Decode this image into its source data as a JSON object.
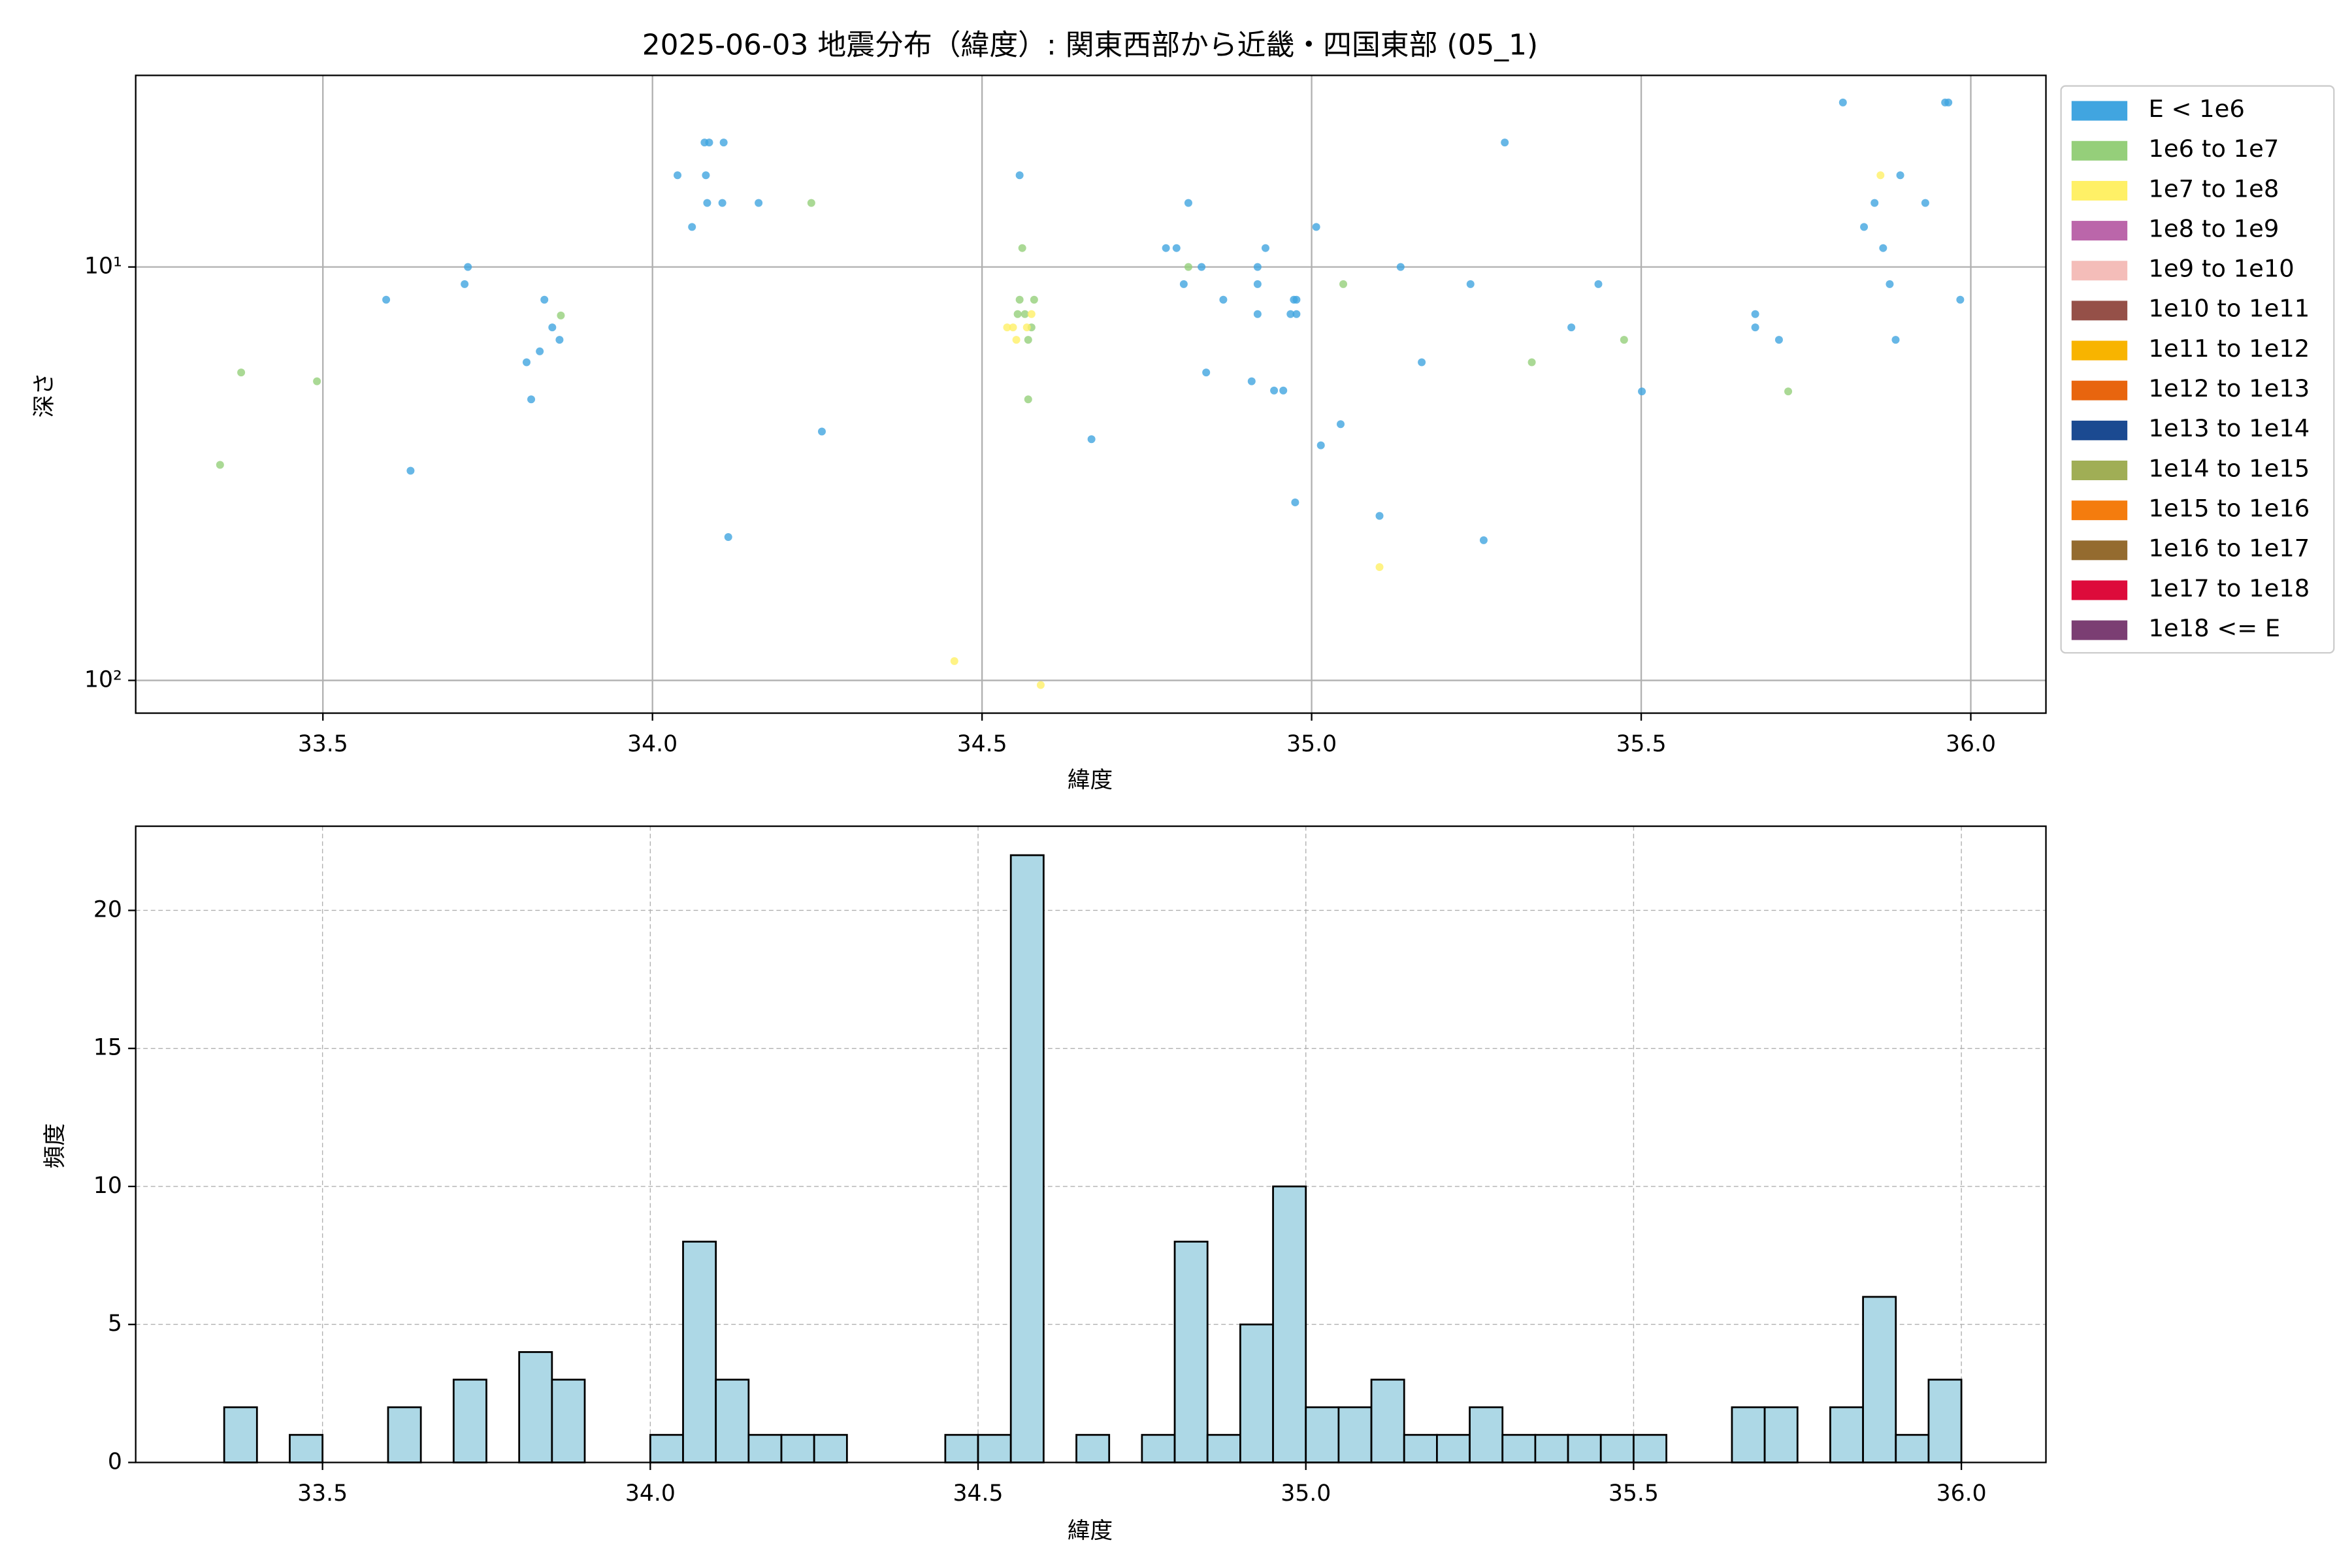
{
  "chart_data": [
    {
      "type": "scatter",
      "title": "2025-06-03 地震分布（緯度）: 関東西部から近畿・四国東部 (05_1)",
      "xlabel": "緯度",
      "ylabel": "深さ",
      "yscale": "log",
      "grid": true,
      "legend": "outside right",
      "xlim": [
        33.216,
        36.114
      ],
      "ylim": [
        120,
        3.44
      ],
      "xticks": [
        33.5,
        {
          "value": 34,
          "label": "34.0"
        },
        34.5,
        {
          "value": 35,
          "label": "35.0"
        },
        35.5,
        {
          "value": 36,
          "label": "36.0"
        }
      ],
      "yticks": [
        {
          "value": 10,
          "label": "10¹"
        },
        {
          "value": 100,
          "label": "10²"
        }
      ],
      "series": [
        {
          "name": "E < 1e6",
          "color": "#41a5e0",
          "x": [
            33.596,
            33.633,
            33.715,
            33.72,
            33.809,
            33.816,
            33.829,
            33.836,
            33.848,
            33.859,
            34.038,
            34.06,
            34.079,
            34.086,
            34.081,
            34.083,
            34.108,
            34.106,
            34.115,
            34.161,
            34.257,
            34.557,
            34.666,
            34.779,
            34.795,
            34.806,
            34.813,
            34.833,
            34.84,
            34.866,
            34.909,
            34.918,
            34.918,
            34.918,
            34.93,
            34.943,
            34.957,
            34.968,
            34.973,
            34.977,
            34.977,
            34.975,
            35.007,
            35.014,
            35.044,
            35.103,
            35.135,
            35.167,
            35.241,
            35.261,
            35.293,
            35.394,
            35.435,
            35.501,
            35.673,
            35.673,
            35.709,
            35.806,
            35.838,
            35.854,
            35.867,
            35.877,
            35.886,
            35.893,
            35.931,
            35.961,
            35.966,
            35.984
          ],
          "values": [
            12,
            31.1,
            11,
            10,
            17,
            20.9,
            16,
            12,
            14,
            15,
            6,
            8,
            5,
            5,
            6,
            7,
            5,
            7,
            45,
            7,
            25,
            6,
            26.1,
            9,
            9,
            11,
            7,
            10,
            18,
            12,
            18.9,
            10,
            11,
            13,
            9,
            19.9,
            19.9,
            13,
            12,
            12,
            13,
            37.1,
            8,
            27,
            24,
            40,
            10,
            17,
            11,
            45.8,
            5,
            14,
            11,
            20,
            13,
            14,
            15,
            4,
            8,
            7,
            9,
            11,
            15,
            6,
            7,
            4,
            4,
            12
          ]
        },
        {
          "name": "1e6 to 1e7",
          "color": "#95cf7a",
          "x": [
            33.344,
            33.376,
            33.491,
            33.861,
            34.241,
            34.554,
            34.557,
            34.561,
            34.565,
            34.57,
            34.57,
            34.575,
            34.579,
            34.813,
            35.048,
            35.334,
            35.474,
            35.723
          ],
          "values": [
            30.1,
            18,
            18.9,
            13.1,
            7,
            13,
            12,
            9,
            13,
            15,
            20.9,
            14,
            12,
            10,
            11,
            17,
            15,
            20
          ]
        },
        {
          "name": "1e7 to 1e8",
          "color": "#fff066",
          "x": [
            34.458,
            34.538,
            34.547,
            34.552,
            34.568,
            34.575,
            34.589,
            35.103,
            35.863
          ],
          "values": [
            89.8,
            14,
            14,
            15,
            14,
            13,
            102.6,
            53.2,
            6
          ]
        },
        {
          "name": "1e8 to 1e9",
          "color": "#bb66aa",
          "x": [],
          "values": []
        },
        {
          "name": "1e9 to 1e10",
          "color": "#f4bdb9",
          "x": [],
          "values": []
        },
        {
          "name": "1e10 to 1e11",
          "color": "#955048",
          "x": [],
          "values": []
        },
        {
          "name": "1e11 to 1e12",
          "color": "#f8b400",
          "x": [],
          "values": []
        },
        {
          "name": "1e12 to 1e13",
          "color": "#e8650e",
          "x": [],
          "values": []
        },
        {
          "name": "1e13 to 1e14",
          "color": "#1b4a91",
          "x": [],
          "values": []
        },
        {
          "name": "1e14 to 1e15",
          "color": "#a0ae55",
          "x": [],
          "values": []
        },
        {
          "name": "1e15 to 1e16",
          "color": "#f47c0e",
          "x": [],
          "values": []
        },
        {
          "name": "1e16 to 1e17",
          "color": "#946b2f",
          "x": [],
          "values": []
        },
        {
          "name": "1e17 to 1e18",
          "color": "#dd0b3b",
          "x": [],
          "values": []
        },
        {
          "name": "1e18 <= E",
          "color": "#7b3e73",
          "x": [],
          "values": []
        }
      ]
    },
    {
      "type": "histogram",
      "xlabel": "緯度",
      "ylabel": "頻度",
      "color": "#add8e6",
      "edgecolor": "#000000",
      "grid": true,
      "xlim": [
        33.215,
        36.129
      ],
      "ylim": [
        0,
        23.05
      ],
      "xticks": [
        33.5,
        {
          "value": 34,
          "label": "34.0"
        },
        34.5,
        {
          "value": 35,
          "label": "35.0"
        },
        35.5,
        {
          "value": 36,
          "label": "36.0"
        }
      ],
      "yticks": [
        0,
        5,
        10,
        15,
        20
      ],
      "bins": [
        33.35,
        33.4,
        33.45,
        33.5,
        33.55,
        33.6,
        33.65,
        33.7,
        33.75,
        33.8,
        33.85,
        33.9,
        33.95,
        34.0,
        34.05,
        34.1,
        34.15,
        34.2,
        34.25,
        34.3,
        34.35,
        34.4,
        34.45,
        34.5,
        34.55,
        34.6,
        34.65,
        34.7,
        34.75,
        34.8,
        34.85,
        34.9,
        34.95,
        35.0,
        35.05,
        35.1,
        35.15,
        35.2,
        35.25,
        35.3,
        35.35,
        35.4,
        35.45,
        35.5,
        35.55,
        35.6,
        35.65,
        35.7,
        35.75,
        35.8,
        35.85,
        35.9,
        35.95,
        36.0
      ],
      "values": [
        2,
        0,
        1,
        0,
        0,
        2,
        0,
        3,
        0,
        4,
        3,
        0,
        0,
        1,
        8,
        3,
        1,
        1,
        1,
        0,
        0,
        0,
        1,
        1,
        22,
        0,
        1,
        0,
        1,
        8,
        1,
        5,
        10,
        2,
        2,
        3,
        1,
        1,
        2,
        1,
        1,
        1,
        1,
        1,
        0,
        0,
        2,
        2,
        0,
        2,
        6,
        1,
        3
      ]
    }
  ]
}
